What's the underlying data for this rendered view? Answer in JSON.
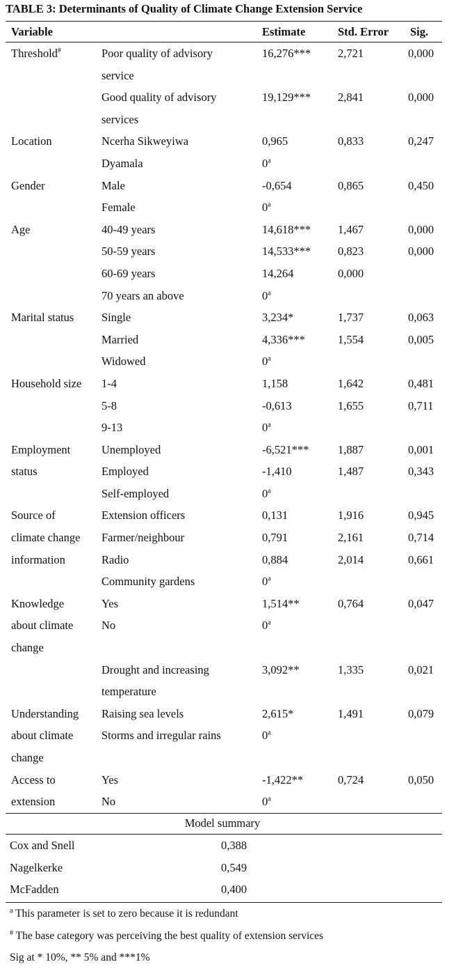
{
  "title": "TABLE 3: Determinants of Quality of Climate Change Extension Service",
  "table": {
    "header": [
      "Variable",
      "Estimate",
      "Std. Error",
      "Sig."
    ],
    "groups": [
      {
        "variable": [
          "Threshold"
        ],
        "variable_note": "#",
        "rows": [
          {
            "category": [
              "Poor quality of advisory",
              "service"
            ],
            "estimate": "16,276***",
            "std_error": "2,721",
            "sig": "0,000"
          },
          {
            "category": [
              "Good quality of advisory",
              "services"
            ],
            "estimate": "19,129***",
            "std_error": "2,841",
            "sig": "0,000"
          }
        ]
      },
      {
        "variable": [
          "Location"
        ],
        "rows": [
          {
            "category": [
              "Ncerha Sikweyiwa"
            ],
            "estimate": "0,965",
            "std_error": "0,833",
            "sig": "0,247"
          },
          {
            "category": [
              "Dyamala"
            ],
            "estimate": "0",
            "estimate_note": "a"
          }
        ]
      },
      {
        "variable": [
          "Gender"
        ],
        "rows": [
          {
            "category": [
              "Male"
            ],
            "estimate": "-0,654",
            "std_error": "0,865",
            "sig": "0,450"
          },
          {
            "category": [
              "Female"
            ],
            "estimate": "0",
            "estimate_note": "a"
          }
        ]
      },
      {
        "variable": [
          "Age"
        ],
        "rows": [
          {
            "category": [
              "40-49 years"
            ],
            "estimate": "14,618***",
            "std_error": "1,467",
            "sig": "0,000"
          },
          {
            "category": [
              "50-59 years"
            ],
            "estimate": "14,533***",
            "std_error": "0,823",
            "sig": "0,000"
          },
          {
            "category": [
              "60-69 years"
            ],
            "estimate": "14,264",
            "std_error": "0,000"
          },
          {
            "category": [
              "70 years an above"
            ],
            "estimate": "0",
            "estimate_note": "a"
          }
        ]
      },
      {
        "variable": [
          "Marital status"
        ],
        "rows": [
          {
            "category": [
              "Single"
            ],
            "estimate": "3,234*",
            "std_error": "1,737",
            "sig": "0,063"
          },
          {
            "category": [
              "Married"
            ],
            "estimate": "4,336***",
            "std_error": "1,554",
            "sig": "0,005"
          },
          {
            "category": [
              "Widowed"
            ],
            "estimate": "0",
            "estimate_note": "a"
          }
        ]
      },
      {
        "variable": [
          "Household size"
        ],
        "rows": [
          {
            "category": [
              "1-4"
            ],
            "estimate": "1,158",
            "std_error": "1,642",
            "sig": "0,481"
          },
          {
            "category": [
              "5-8"
            ],
            "estimate": "-0,613",
            "std_error": "1,655",
            "sig": "0,711"
          },
          {
            "category": [
              "9-13"
            ],
            "estimate": "0",
            "estimate_note": "a"
          }
        ]
      },
      {
        "variable": [
          "Employment",
          "status"
        ],
        "rows": [
          {
            "category": [
              "Unemployed"
            ],
            "estimate": "-6,521***",
            "std_error": "1,887",
            "sig": "0,001"
          },
          {
            "category": [
              "Employed"
            ],
            "estimate": "-1,410",
            "std_error": "1,487",
            "sig": "0,343"
          },
          {
            "category": [
              "Self-employed"
            ],
            "estimate": "0",
            "estimate_note": "a"
          }
        ]
      },
      {
        "variable": [
          "Source of",
          "climate change",
          "information"
        ],
        "rows": [
          {
            "category": [
              "Extension officers"
            ],
            "estimate": "0,131",
            "std_error": "1,916",
            "sig": "0,945"
          },
          {
            "category": [
              "Farmer/neighbour"
            ],
            "estimate": "0,791",
            "std_error": "2,161",
            "sig": "0,714"
          },
          {
            "category": [
              "Radio"
            ],
            "estimate": "0,884",
            "std_error": "2,014",
            "sig": "0,661"
          },
          {
            "category": [
              "Community gardens"
            ],
            "estimate": "0",
            "estimate_note": "a"
          }
        ]
      },
      {
        "variable": [
          "Knowledge",
          "about climate",
          "change"
        ],
        "rows": [
          {
            "category": [
              "Yes"
            ],
            "estimate": "1,514**",
            "std_error": "0,764",
            "sig": "0,047"
          },
          {
            "category": [
              "No"
            ],
            "estimate": "0",
            "estimate_note": "a"
          }
        ]
      },
      {
        "rows": [
          {
            "category": [
              "Drought and increasing",
              "temperature"
            ],
            "estimate": "3,092**",
            "std_error": "1,335",
            "sig": "0,021"
          }
        ]
      },
      {
        "variable": [
          "Understanding",
          "about climate",
          "change"
        ],
        "rows": [
          {
            "category": [
              "Raising sea levels"
            ],
            "estimate": "2,615*",
            "std_error": "1,491",
            "sig": "0,079"
          },
          {
            "category": [
              "Storms and irregular rains"
            ],
            "estimate": "0",
            "estimate_note": "a"
          }
        ]
      },
      {
        "variable": [
          "Access to",
          "extension"
        ],
        "rows": [
          {
            "category": [
              "Yes"
            ],
            "estimate": "-1,422**",
            "std_error": "0,724",
            "sig": "0,050"
          },
          {
            "category": [
              "No"
            ],
            "estimate": "0",
            "estimate_note": "a"
          }
        ]
      }
    ]
  },
  "model_summary": {
    "title": "Model summary",
    "rows": [
      {
        "label": "Cox and Snell",
        "value": "0,388"
      },
      {
        "label": "Nagelkerke",
        "value": "0,549"
      },
      {
        "label": "McFadden",
        "value": "0,400"
      }
    ]
  },
  "footnotes": [
    {
      "mark": "a",
      "text": "This parameter is set to zero because it is redundant"
    },
    {
      "mark": "#",
      "text": "The base category was perceiving the best quality of extension services"
    },
    {
      "text": "Sig at * 10%, ** 5% and ***1%"
    }
  ]
}
